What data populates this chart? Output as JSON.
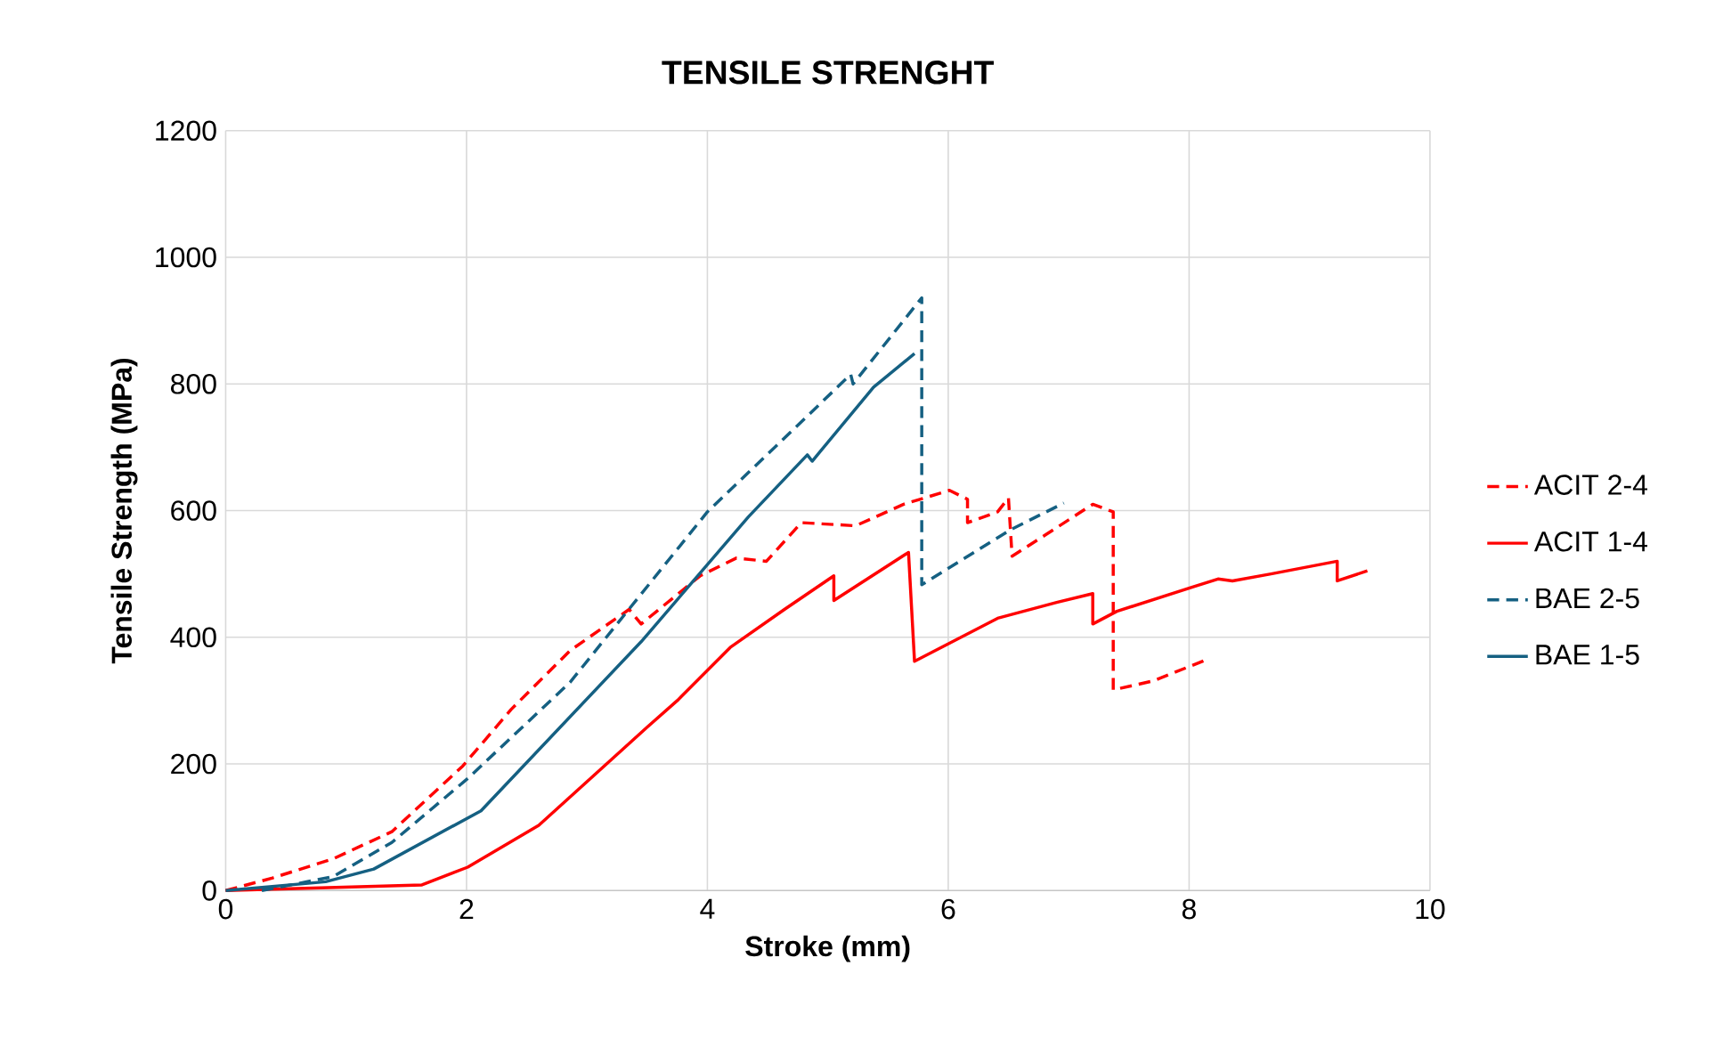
{
  "chart_data": {
    "type": "line",
    "title": "TENSILE STRENGHT",
    "xlabel": "Stroke (mm)",
    "ylabel": "Tensile Strength (MPa)",
    "xlim": [
      0,
      10
    ],
    "ylim": [
      0,
      1200
    ],
    "xticks": [
      0,
      2,
      4,
      6,
      8,
      10
    ],
    "yticks": [
      0,
      200,
      400,
      600,
      800,
      1000,
      1200
    ],
    "grid": true,
    "legend": "right",
    "marker": "none",
    "series": [
      {
        "name": "ACIT 2-4",
        "color": "#ff0000",
        "line_style": "dashed",
        "x": [
          0,
          0.39,
          0.89,
          1.38,
          1.97,
          2.37,
          2.86,
          3.35,
          3.45,
          3.94,
          4.24,
          4.49,
          4.78,
          5.23,
          5.63,
          6.01,
          6.16,
          6.16,
          6.41,
          6.5,
          6.53,
          6.81,
          7.2,
          7.37,
          7.37,
          7.7,
          8.15
        ],
        "values": [
          0,
          20,
          50,
          93,
          197,
          286,
          379,
          444,
          421,
          497,
          525,
          520,
          581,
          576,
          610,
          632,
          618,
          581,
          598,
          620,
          528,
          562,
          610,
          598,
          317,
          331,
          365
        ]
      },
      {
        "name": "ACIT 1-4",
        "color": "#ff0000",
        "line_style": "solid",
        "x": [
          0,
          1.63,
          2.01,
          2.6,
          3.5,
          3.75,
          4.19,
          4.64,
          5.05,
          5.05,
          5.67,
          5.72,
          6.41,
          6.9,
          7.2,
          7.2,
          7.4,
          8.04,
          8.24,
          8.36,
          8.68,
          9.23,
          9.23,
          9.48
        ],
        "values": [
          0,
          9,
          37,
          103,
          258,
          300,
          384,
          444,
          497,
          458,
          534,
          362,
          430,
          455,
          469,
          421,
          441,
          480,
          492,
          489,
          500,
          520,
          489,
          505
        ]
      },
      {
        "name": "BAE 2-5",
        "color": "#156082",
        "line_style": "dashed",
        "x": [
          0.3,
          0.89,
          1.38,
          2.01,
          2.86,
          4.0,
          4.34,
          5.19,
          5.21,
          5.78,
          5.78,
          6.52,
          6.96
        ],
        "values": [
          0,
          22,
          76,
          177,
          329,
          598,
          660,
          815,
          800,
          936,
          483,
          570,
          612
        ]
      },
      {
        "name": "BAE 1-5",
        "color": "#156082",
        "line_style": "solid",
        "x": [
          0,
          0.83,
          1.23,
          2.12,
          3.45,
          4.34,
          4.83,
          4.87,
          5.38,
          5.72
        ],
        "values": [
          0,
          14,
          34,
          126,
          393,
          590,
          688,
          678,
          795,
          848
        ]
      }
    ]
  }
}
